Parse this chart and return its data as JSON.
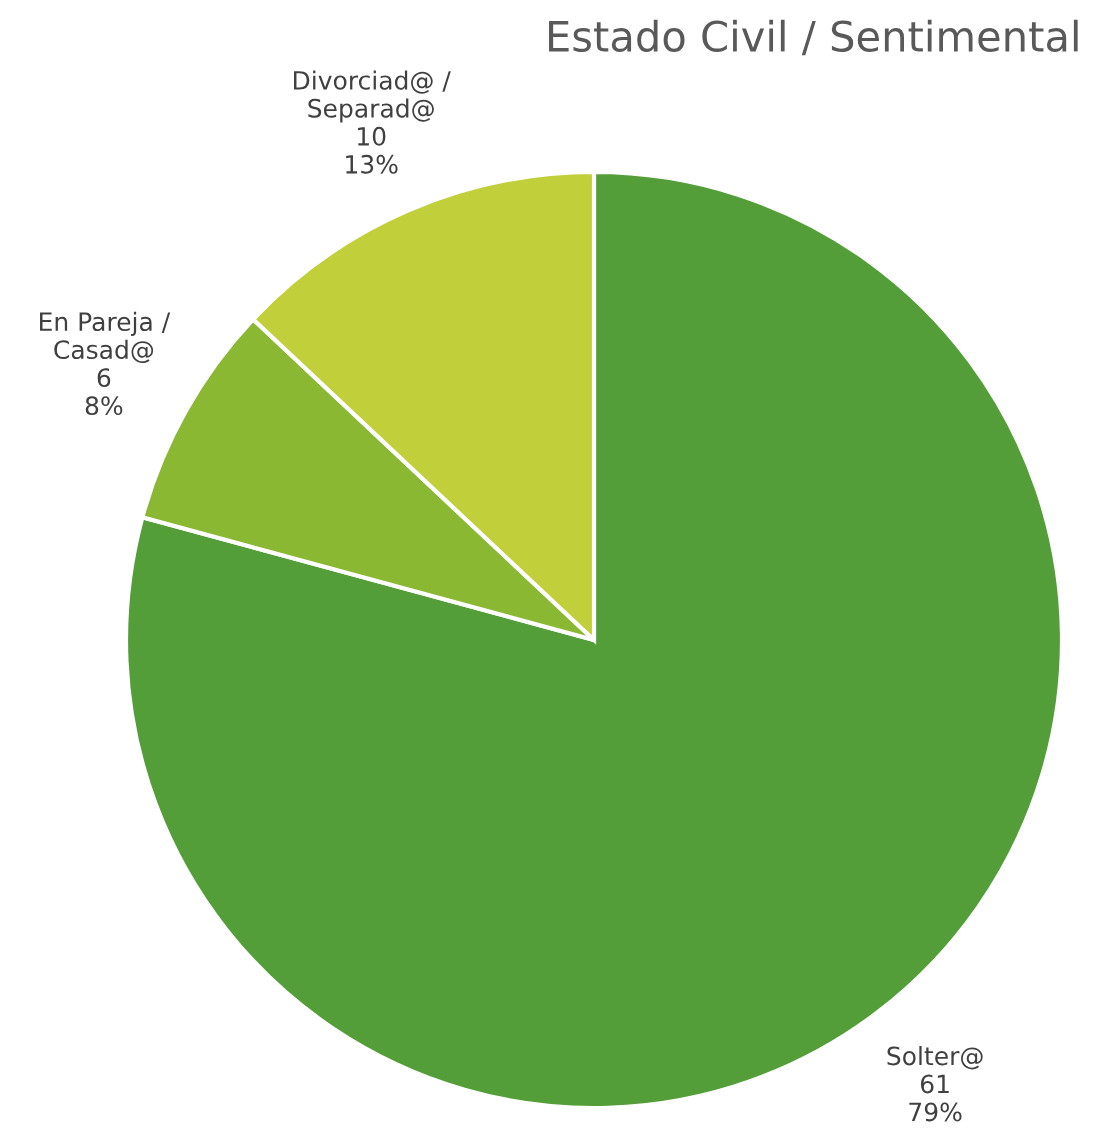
{
  "chart_data": {
    "type": "pie",
    "title": "Estado Civil / Sentimental",
    "categories": [
      "Solter@",
      "En Pareja /\nCasad@",
      "Divorciad@ /\nSeparad@"
    ],
    "values": [
      61,
      6,
      10
    ],
    "value_labels": [
      "61\n79%",
      "6\n8%",
      "10\n13%"
    ],
    "colors": [
      "#549e39",
      "#8ab833",
      "#c0cf3a"
    ]
  }
}
